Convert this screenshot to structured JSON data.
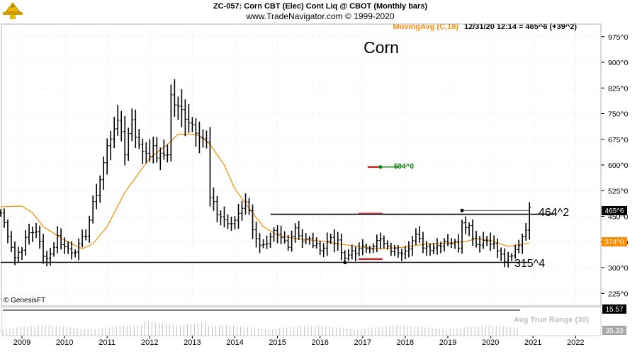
{
  "header": {
    "title": "ZC-057:  Corn CBT (Elec) Cont Liq @ CBOT  (Monthly bars)",
    "site": "www.TradeNavigator.com © 1999-2020",
    "indicator_label": "MovingAvg (C,18)",
    "last_quote": "12/31/20 12:14 = 465^6 (+39^2)"
  },
  "copyright": "© GenesisFT",
  "colors": {
    "bars": "#000000",
    "moving_avg": "#f08c00",
    "grid": "#c8c8c8",
    "signal_green": "#008000",
    "signal_red": "#e00000",
    "indicator_label": "#ff8c00",
    "price_box": "#000000",
    "ma_box": "#ff8c00",
    "bottom_panel": "#c0c0c0"
  },
  "chart_data": [
    {
      "type": "bar",
      "subtype": "ohlc",
      "title": "Corn",
      "timeframe": "Monthly bars",
      "xlim": [
        "2008-07",
        "2022-08"
      ],
      "ylim": [
        200,
        1000
      ],
      "x_tick_labels": [
        "2009",
        "2010",
        "2011",
        "2012",
        "2013",
        "2014",
        "2015",
        "2016",
        "2017",
        "2018",
        "2019",
        "2020",
        "2021",
        "2022"
      ],
      "y_tick_labels": [
        "975^0",
        "900^0",
        "825^0",
        "750^0",
        "675^0",
        "600^0",
        "525^0",
        "450^0",
        "375^0",
        "300^0",
        "225^0"
      ],
      "y_tick_values": [
        975,
        900,
        825,
        750,
        675,
        600,
        525,
        450,
        375,
        300,
        225
      ],
      "grid": true,
      "ohlc_note": "monthly close path; bars drawn from close path",
      "close_path": [
        [
          "2008-07",
          460
        ],
        [
          "2008-09",
          400
        ],
        [
          "2008-11",
          330
        ],
        [
          "2009-01",
          360
        ],
        [
          "2009-03",
          400
        ],
        [
          "2009-05",
          410
        ],
        [
          "2009-07",
          330
        ],
        [
          "2009-09",
          340
        ],
        [
          "2009-11",
          390
        ],
        [
          "2010-01",
          360
        ],
        [
          "2010-03",
          350
        ],
        [
          "2010-05",
          360
        ],
        [
          "2010-07",
          400
        ],
        [
          "2010-09",
          480
        ],
        [
          "2010-11",
          560
        ],
        [
          "2011-01",
          650
        ],
        [
          "2011-03",
          720
        ],
        [
          "2011-05",
          700
        ],
        [
          "2011-06",
          640
        ],
        [
          "2011-08",
          740
        ],
        [
          "2011-10",
          650
        ],
        [
          "2011-12",
          640
        ],
        [
          "2012-02",
          640
        ],
        [
          "2012-04",
          620
        ],
        [
          "2012-06",
          640
        ],
        [
          "2012-07",
          800
        ],
        [
          "2012-09",
          760
        ],
        [
          "2012-11",
          750
        ],
        [
          "2013-01",
          720
        ],
        [
          "2013-03",
          700
        ],
        [
          "2013-05",
          660
        ],
        [
          "2013-06",
          500
        ],
        [
          "2013-08",
          460
        ],
        [
          "2013-10",
          440
        ],
        [
          "2013-12",
          420
        ],
        [
          "2014-02",
          460
        ],
        [
          "2014-04",
          500
        ],
        [
          "2014-06",
          420
        ],
        [
          "2014-08",
          360
        ],
        [
          "2014-10",
          360
        ],
        [
          "2014-12",
          400
        ],
        [
          "2015-02",
          385
        ],
        [
          "2015-04",
          370
        ],
        [
          "2015-06",
          420
        ],
        [
          "2015-08",
          380
        ],
        [
          "2015-10",
          380
        ],
        [
          "2015-12",
          360
        ],
        [
          "2016-02",
          360
        ],
        [
          "2016-04",
          390
        ],
        [
          "2016-06",
          370
        ],
        [
          "2016-08",
          320
        ],
        [
          "2016-10",
          350
        ],
        [
          "2016-12",
          350
        ],
        [
          "2017-02",
          360
        ],
        [
          "2017-04",
          370
        ],
        [
          "2017-06",
          380
        ],
        [
          "2017-08",
          355
        ],
        [
          "2017-10",
          350
        ],
        [
          "2017-12",
          350
        ],
        [
          "2018-02",
          365
        ],
        [
          "2018-04",
          390
        ],
        [
          "2018-06",
          365
        ],
        [
          "2018-08",
          360
        ],
        [
          "2018-10",
          365
        ],
        [
          "2018-12",
          380
        ],
        [
          "2019-02",
          375
        ],
        [
          "2019-04",
          365
        ],
        [
          "2019-05",
          440
        ],
        [
          "2019-07",
          420
        ],
        [
          "2019-09",
          370
        ],
        [
          "2019-11",
          380
        ],
        [
          "2020-01",
          380
        ],
        [
          "2020-03",
          350
        ],
        [
          "2020-05",
          320
        ],
        [
          "2020-07",
          330
        ],
        [
          "2020-09",
          370
        ],
        [
          "2020-11",
          420
        ],
        [
          "2020-12",
          466
        ]
      ],
      "moving_average": {
        "name": "MovingAvg (C,18)",
        "points": [
          [
            "2008-07",
            478
          ],
          [
            "2009-01",
            480
          ],
          [
            "2009-04",
            460
          ],
          [
            "2009-07",
            420
          ],
          [
            "2010-01",
            380
          ],
          [
            "2010-06",
            355
          ],
          [
            "2010-09",
            370
          ],
          [
            "2011-01",
            420
          ],
          [
            "2011-06",
            520
          ],
          [
            "2012-01",
            620
          ],
          [
            "2012-06",
            660
          ],
          [
            "2012-09",
            690
          ],
          [
            "2013-01",
            690
          ],
          [
            "2013-03",
            685
          ],
          [
            "2013-06",
            660
          ],
          [
            "2013-10",
            600
          ],
          [
            "2014-01",
            530
          ],
          [
            "2014-06",
            460
          ],
          [
            "2014-09",
            420
          ],
          [
            "2015-01",
            395
          ],
          [
            "2015-06",
            385
          ],
          [
            "2016-01",
            378
          ],
          [
            "2016-06",
            370
          ],
          [
            "2017-01",
            360
          ],
          [
            "2017-06",
            355
          ],
          [
            "2018-01",
            360
          ],
          [
            "2018-06",
            368
          ],
          [
            "2019-01",
            372
          ],
          [
            "2019-06",
            376
          ],
          [
            "2019-09",
            385
          ],
          [
            "2020-01",
            380
          ],
          [
            "2020-06",
            362
          ],
          [
            "2020-12",
            372
          ]
        ]
      },
      "annotations": [
        {
          "text": "594^0",
          "value": 594,
          "x": "2017-06",
          "color": "#008000"
        },
        {
          "text": "464^2",
          "value": 464.25
        },
        {
          "text": "315^4",
          "value": 315.5
        }
      ],
      "levels": [
        {
          "name": "resistance",
          "value": 456,
          "from": "2014-11",
          "to": "2021-07"
        },
        {
          "name": "support",
          "value": 315.5,
          "from": "2008-07",
          "to": "2020-12"
        },
        {
          "name": "recent-high",
          "value": 467,
          "from": "2019-05",
          "to": "2020-12"
        }
      ],
      "markers": [
        {
          "name": "red-mark-upper",
          "value": 459,
          "x": "2017-03"
        },
        {
          "name": "red-mark-lower",
          "value": 325,
          "x": "2017-03"
        },
        {
          "name": "low-dot-2016",
          "value": 315,
          "x": "2016-08"
        },
        {
          "name": "high-dot-2019",
          "value": 467,
          "x": "2019-05"
        }
      ],
      "price_labels": [
        {
          "text": "465^6",
          "value": 465.75,
          "kind": "last-price"
        },
        {
          "text": "374^0",
          "value": 374,
          "kind": "moving-average"
        }
      ]
    },
    {
      "type": "area",
      "title": "Avg True Range (30)",
      "value_labels": [
        "15.57",
        "35.33"
      ]
    }
  ]
}
